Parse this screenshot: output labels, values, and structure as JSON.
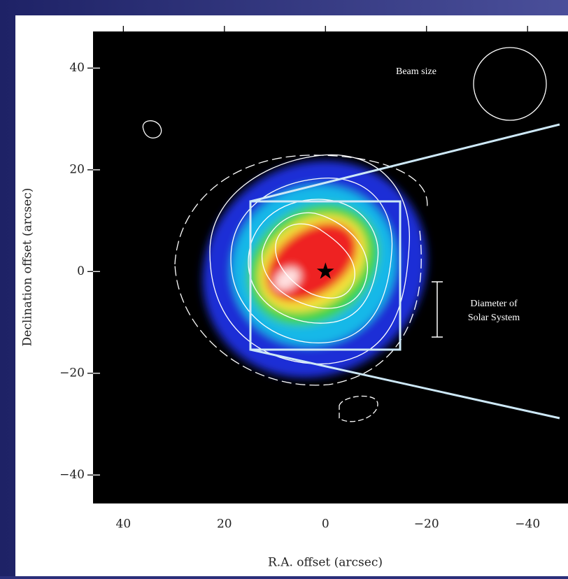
{
  "chart_data": {
    "type": "image",
    "x_label": "R.A. offset (arcsec)",
    "y_label": "Declination offset (arcsec)",
    "xlim": [
      46,
      -48
    ],
    "ylim": [
      -45.6,
      47.2
    ],
    "xticks": [
      40,
      20,
      0,
      {
        "value": -20,
        "label": "−20"
      },
      {
        "value": -40,
        "label": "−40"
      }
    ],
    "yticks": [
      40,
      20,
      0,
      {
        "value": -20,
        "label": "−20"
      },
      {
        "value": -40,
        "label": "−40"
      }
    ],
    "x": [
      0
    ],
    "values": [
      0
    ],
    "annotations": [
      "Beam size",
      "Diameter of",
      "Solar System"
    ]
  }
}
